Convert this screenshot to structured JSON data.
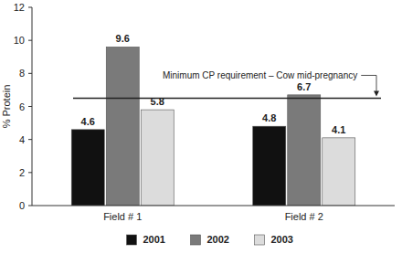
{
  "chart_data": {
    "type": "bar",
    "y_label": "% Protein",
    "categories": [
      "Field # 1",
      "Field # 2"
    ],
    "series": [
      {
        "name": "2001",
        "color": "#111111",
        "values": [
          4.6,
          4.8
        ]
      },
      {
        "name": "2002",
        "color": "#7a7a7a",
        "values": [
          9.6,
          6.7
        ]
      },
      {
        "name": "2003",
        "color": "#dcdcdc",
        "values": [
          5.8,
          4.1
        ]
      }
    ],
    "ylim": [
      0,
      12
    ],
    "yticks": [
      0,
      2,
      4,
      6,
      8,
      10,
      12
    ],
    "grid": false,
    "data_labels": true,
    "legend": "bottom",
    "annotations": [
      {
        "text": "Minimum CP requirement – Cow mid-pregnancy",
        "y": 6.5
      }
    ]
  }
}
